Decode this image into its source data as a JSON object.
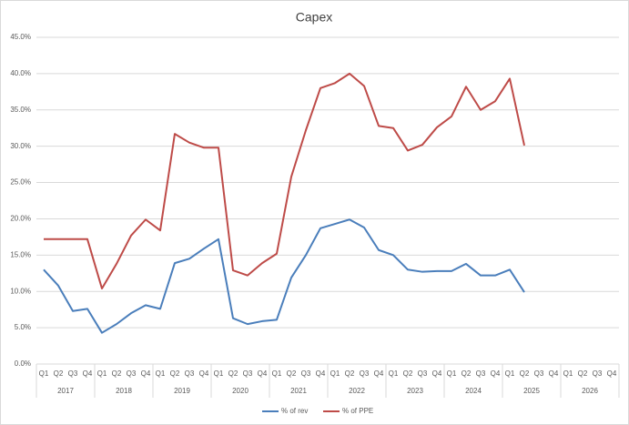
{
  "chart_data": {
    "type": "line",
    "title": "Capex",
    "categories": [
      "Q1",
      "Q2",
      "Q3",
      "Q4",
      "Q1",
      "Q2",
      "Q3",
      "Q4",
      "Q1",
      "Q2",
      "Q3",
      "Q4",
      "Q1",
      "Q2",
      "Q3",
      "Q4",
      "Q1",
      "Q2",
      "Q3",
      "Q4",
      "Q1",
      "Q2",
      "Q3",
      "Q4",
      "Q1",
      "Q2",
      "Q3",
      "Q4",
      "Q1",
      "Q2",
      "Q3",
      "Q4",
      "Q1",
      "Q2",
      "Q3",
      "Q4",
      "Q1",
      "Q2",
      "Q3",
      "Q4"
    ],
    "category_groups": [
      "2017",
      "2018",
      "2019",
      "2020",
      "2021",
      "2022",
      "2023",
      "2024",
      "2025",
      "2026"
    ],
    "series": [
      {
        "name": "% of rev",
        "color": "#4a7ebb",
        "values": [
          13.0,
          10.8,
          7.3,
          7.6,
          4.3,
          5.5,
          7.0,
          8.1,
          7.6,
          13.9,
          14.5,
          15.9,
          17.2,
          6.3,
          5.5,
          5.9,
          6.1,
          11.9,
          15.0,
          18.7,
          19.3,
          19.9,
          18.8,
          15.7,
          15.0,
          13.0,
          12.7,
          12.8,
          12.8,
          13.8,
          12.2,
          12.2,
          13.0,
          9.9,
          null,
          null,
          null,
          null,
          null,
          null
        ]
      },
      {
        "name": "% of PPE",
        "color": "#be4b48",
        "values": [
          17.2,
          17.2,
          17.2,
          17.2,
          10.4,
          13.8,
          17.7,
          19.9,
          18.4,
          31.7,
          30.5,
          29.8,
          29.8,
          12.9,
          12.2,
          13.9,
          15.2,
          25.8,
          32.2,
          38.0,
          38.7,
          40.0,
          38.3,
          32.8,
          32.5,
          29.4,
          30.2,
          32.6,
          34.1,
          38.2,
          35.0,
          36.2,
          39.3,
          30.1,
          null,
          null,
          null,
          null,
          null,
          null
        ]
      }
    ],
    "ylim": [
      0,
      45
    ],
    "yticks": [
      {
        "value": 0,
        "label": "0.0%"
      },
      {
        "value": 5,
        "label": "5.0%"
      },
      {
        "value": 10,
        "label": "10.0%"
      },
      {
        "value": 15,
        "label": "15.0%"
      },
      {
        "value": 20,
        "label": "20.0%"
      },
      {
        "value": 25,
        "label": "25.0%"
      },
      {
        "value": 30,
        "label": "30.0%"
      },
      {
        "value": 35,
        "label": "35.0%"
      },
      {
        "value": 40,
        "label": "40.0%"
      },
      {
        "value": 45,
        "label": "45.0%"
      }
    ],
    "grid": true,
    "legend": "bottom"
  }
}
